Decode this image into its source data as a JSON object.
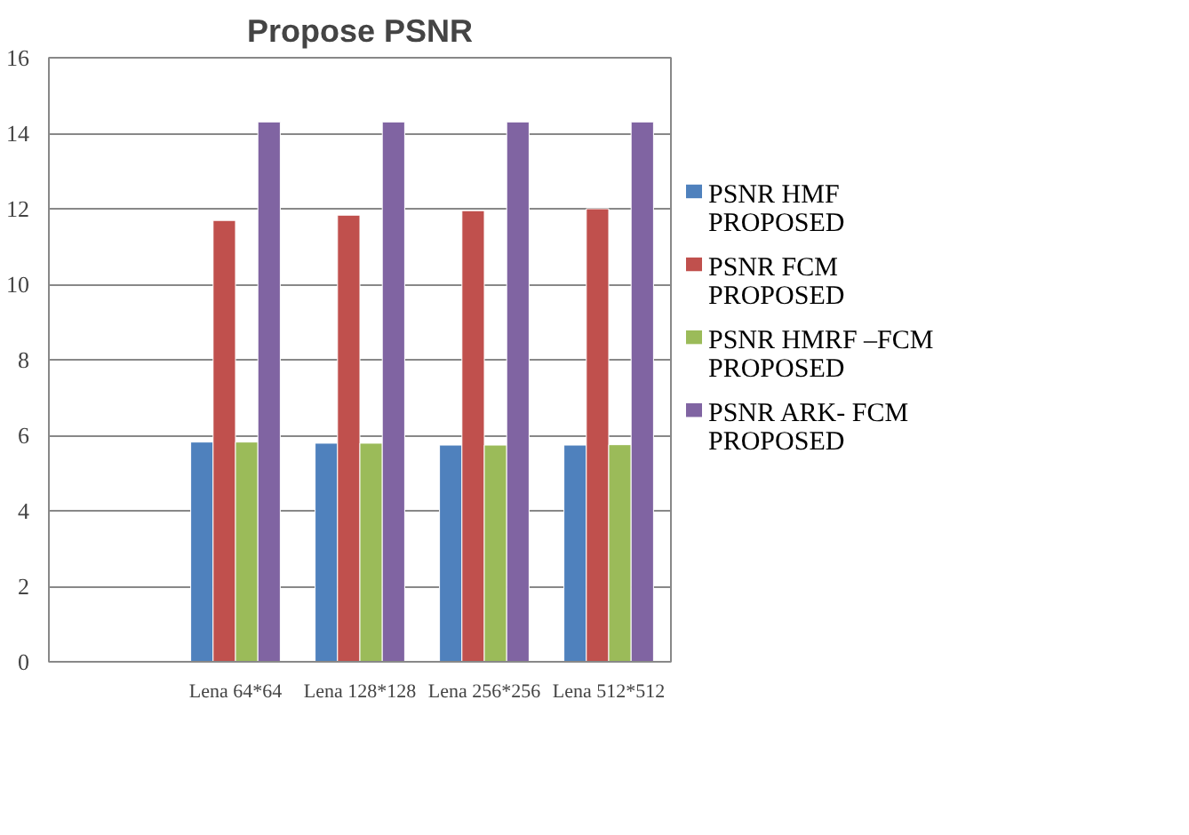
{
  "chart_data": {
    "type": "bar",
    "title": "Propose PSNR",
    "categories": [
      null,
      "Lena 64*64",
      "Lena 128*128",
      "Lena 256*256",
      "Lena 512*512"
    ],
    "series": [
      {
        "name": "PSNR   HMF PROPOSED",
        "color": "#4f81bd",
        "values": [
          null,
          5.82,
          5.79,
          5.74,
          5.74
        ]
      },
      {
        "name": "PSNR   FCM PROPOSED",
        "color": "#c0504d",
        "values": [
          null,
          11.69,
          11.83,
          11.95,
          12.0
        ]
      },
      {
        "name": "PSNR   HMRF –FCM PROPOSED",
        "color": "#9bbb59",
        "values": [
          null,
          5.82,
          5.79,
          5.74,
          5.75
        ]
      },
      {
        "name": "PSNR  ARK- FCM PROPOSED",
        "color": "#8064a2",
        "values": [
          null,
          14.3,
          14.3,
          14.3,
          14.3
        ]
      }
    ],
    "ylim": [
      0,
      16
    ],
    "yticks": [
      0,
      2,
      4,
      6,
      8,
      10,
      12,
      14,
      16
    ],
    "grid": "y",
    "legend": "right"
  }
}
